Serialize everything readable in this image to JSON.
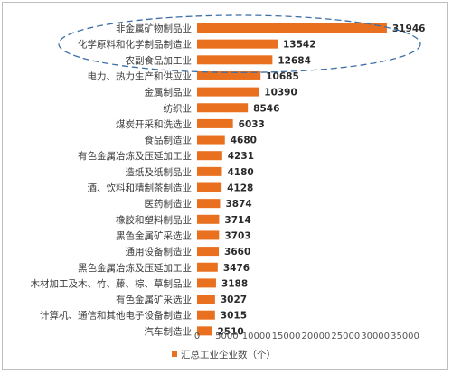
{
  "chart_data": {
    "type": "bar",
    "orientation": "horizontal",
    "categories": [
      "非金属矿物制品业",
      "化学原料和化学制品制造业",
      "农副食品加工业",
      "电力、热力生产和供应业",
      "金属制品业",
      "纺织业",
      "煤炭开采和洗选业",
      "食品制造业",
      "有色金属冶炼及压延加工业",
      "造纸及纸制品业",
      "酒、饮料和精制茶制造业",
      "医药制造业",
      "橡胶和塑料制品业",
      "黑色金属矿采选业",
      "通用设备制造业",
      "黑色金属冶炼及压延加工业",
      "木材加工及木、竹、藤、棕、草制品业",
      "有色金属矿采选业",
      "计算机、通信和其他电子设备制造业",
      "汽车制造业"
    ],
    "series": [
      {
        "name": "汇总工业企业数（个）",
        "values": [
          31946,
          13542,
          12684,
          10685,
          10390,
          8546,
          6033,
          4680,
          4231,
          4180,
          4128,
          3874,
          3714,
          3703,
          3660,
          3476,
          3188,
          3027,
          3015,
          2510
        ]
      }
    ],
    "value_labels": [
      "31946",
      "13542",
      "12684",
      "10685",
      "10390",
      "8546",
      "6033",
      "4680",
      "4231",
      "4180",
      "4128",
      "3874",
      "3714",
      "3703",
      "3660",
      "3476",
      "3188",
      "3027",
      "3015",
      "2510"
    ],
    "xlim": [
      0,
      35000
    ],
    "x_ticks": [
      "0",
      "5000",
      "10000",
      "15000",
      "20000",
      "25000",
      "30000",
      "35000"
    ],
    "x_tick_values": [
      0,
      5000,
      10000,
      15000,
      20000,
      25000,
      30000,
      35000
    ],
    "grid": false,
    "legend_position": "bottom",
    "bar_color": "#e8701e",
    "highlight": {
      "shape": "dashed-ellipse",
      "color": "#3f6fa8",
      "covers_categories": [
        0,
        1,
        2
      ]
    }
  }
}
